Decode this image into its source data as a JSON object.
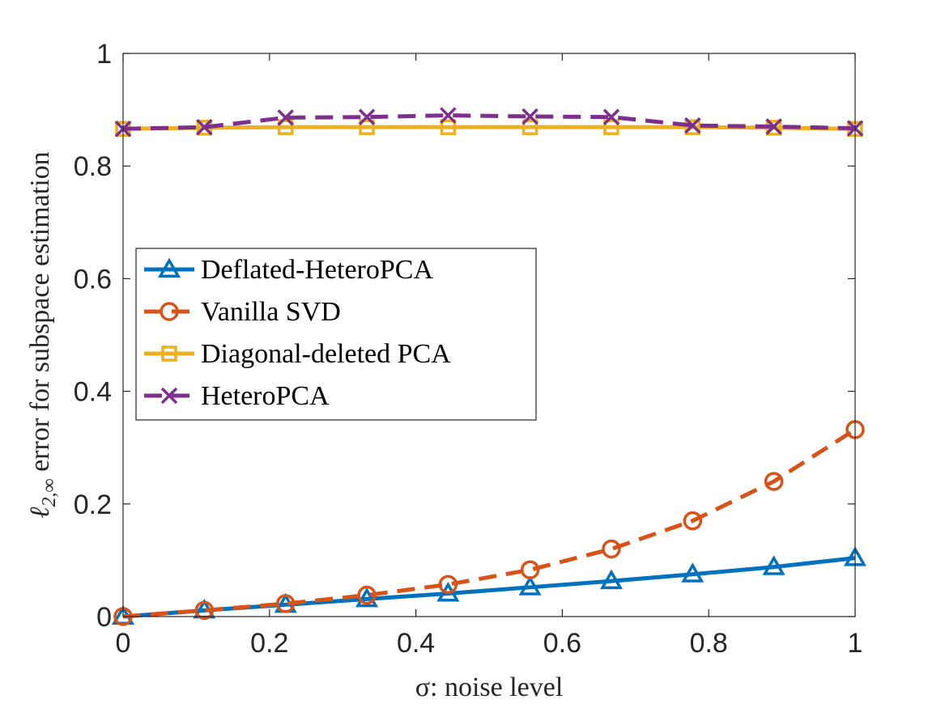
{
  "chart_data": {
    "type": "line",
    "title": "",
    "xlabel": "σ: noise level",
    "ylabel": "ℓ",
    "ylabel_subscript": "2,∞",
    "ylabel_rest": " error for subspace estimation",
    "xlim": [
      0,
      1
    ],
    "ylim": [
      0,
      1
    ],
    "xticks": [
      0,
      0.2,
      0.4,
      0.6,
      0.8,
      1
    ],
    "yticks": [
      0,
      0.2,
      0.4,
      0.6,
      0.8,
      1
    ],
    "xtick_labels": [
      "0",
      "0.2",
      "0.4",
      "0.6",
      "0.8",
      "1"
    ],
    "ytick_labels": [
      "0",
      "0.2",
      "0.4",
      "0.6",
      "0.8",
      "1"
    ],
    "grid": false,
    "legend_position": "middle-left",
    "x": [
      0,
      0.111,
      0.222,
      0.333,
      0.444,
      0.556,
      0.667,
      0.778,
      0.889,
      1.0
    ],
    "series": [
      {
        "name": "Deflated-HeteroPCA",
        "color": "#0072BD",
        "dash": "solid",
        "marker": "triangle",
        "values": [
          0.0,
          0.011,
          0.021,
          0.031,
          0.041,
          0.052,
          0.063,
          0.075,
          0.088,
          0.104
        ]
      },
      {
        "name": "Vanilla SVD",
        "color": "#D95319",
        "dash": "dashed",
        "marker": "circle",
        "values": [
          0.0,
          0.011,
          0.023,
          0.038,
          0.057,
          0.083,
          0.12,
          0.17,
          0.24,
          0.332
        ]
      },
      {
        "name": "Diagonal-deleted PCA",
        "color": "#EDB120",
        "dash": "solid",
        "marker": "square",
        "values": [
          0.866,
          0.868,
          0.869,
          0.869,
          0.869,
          0.869,
          0.869,
          0.869,
          0.868,
          0.866
        ]
      },
      {
        "name": "HeteroPCA",
        "color": "#7E2F8E",
        "dash": "dashed",
        "marker": "x",
        "values": [
          0.866,
          0.869,
          0.886,
          0.887,
          0.89,
          0.888,
          0.887,
          0.872,
          0.87,
          0.867
        ]
      }
    ]
  }
}
